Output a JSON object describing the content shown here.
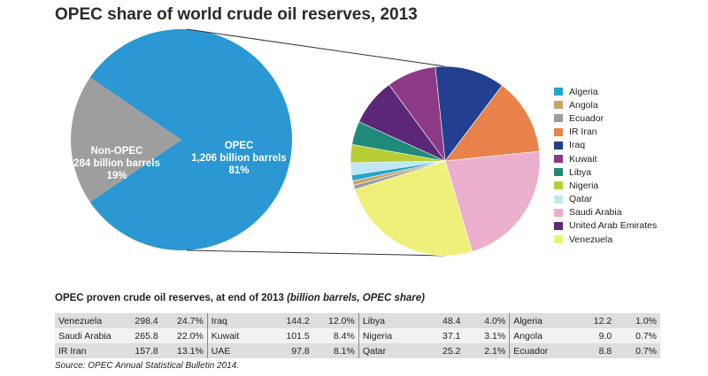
{
  "title": "OPEC share of world crude oil reserves, 2013",
  "chart_data": [
    {
      "type": "pie",
      "slices": [
        {
          "name": "OPEC",
          "label_lines": [
            "OPEC",
            "1,206 billion barrels",
            "81%"
          ],
          "value": 1206,
          "share": 81,
          "color": "#2b97d3"
        },
        {
          "name": "Non-OPEC",
          "label_lines": [
            "Non-OPEC",
            "284 billion barrels",
            "19%"
          ],
          "value": 284,
          "share": 19,
          "color": "#9e9e9e"
        }
      ]
    },
    {
      "type": "pie",
      "legend_position": "right",
      "slices": [
        {
          "name": "Algeria",
          "value": 12.2,
          "share": 1.0,
          "color": "#25a6c9"
        },
        {
          "name": "Angola",
          "value": 9.0,
          "share": 0.7,
          "color": "#c7a56a"
        },
        {
          "name": "Ecuador",
          "value": 8.8,
          "share": 0.7,
          "color": "#9c9c9c"
        },
        {
          "name": "IR Iran",
          "value": 157.8,
          "share": 13.1,
          "color": "#e9824a"
        },
        {
          "name": "Iraq",
          "value": 144.2,
          "share": 12.0,
          "color": "#22408f"
        },
        {
          "name": "Kuwait",
          "value": 101.5,
          "share": 8.4,
          "color": "#8d3a86"
        },
        {
          "name": "Libya",
          "value": 48.4,
          "share": 4.0,
          "color": "#1f8a79"
        },
        {
          "name": "Nigeria",
          "value": 37.1,
          "share": 3.1,
          "color": "#b6cd35"
        },
        {
          "name": "Qatar",
          "value": 25.2,
          "share": 2.1,
          "color": "#bfe6f3"
        },
        {
          "name": "Saudi Arabia",
          "value": 265.8,
          "share": 22.0,
          "color": "#ebb0cd"
        },
        {
          "name": "United Arab Emirates",
          "value": 97.8,
          "share": 8.1,
          "color": "#5d2778"
        },
        {
          "name": "Venezuela",
          "value": 298.4,
          "share": 24.7,
          "color": "#eef07a"
        }
      ]
    }
  ],
  "table": {
    "title": "OPEC proven crude oil reserves, at end of 2013",
    "title_italic": "(billion barrels, OPEC share)",
    "rows": [
      [
        [
          "Venezuela",
          "298.4",
          "24.7%"
        ],
        [
          "Iraq",
          "144.2",
          "12.0%"
        ],
        [
          "Libya",
          "48.4",
          "4.0%"
        ],
        [
          "Algeria",
          "12.2",
          "1.0%"
        ]
      ],
      [
        [
          "Saudi Arabia",
          "265.8",
          "22.0%"
        ],
        [
          "Kuwait",
          "101.5",
          "8.4%"
        ],
        [
          "Nigeria",
          "37.1",
          "3.1%"
        ],
        [
          "Angola",
          "9.0",
          "0.7%"
        ]
      ],
      [
        [
          "IR Iran",
          "157.8",
          "13.1%"
        ],
        [
          "UAE",
          "97.8",
          "8.1%"
        ],
        [
          "Qatar",
          "25.2",
          "2.1%"
        ],
        [
          "Ecuador",
          "8.8",
          "0.7%"
        ]
      ]
    ]
  },
  "source": "Source: OPEC Annual Statistical Bulletin 2014."
}
